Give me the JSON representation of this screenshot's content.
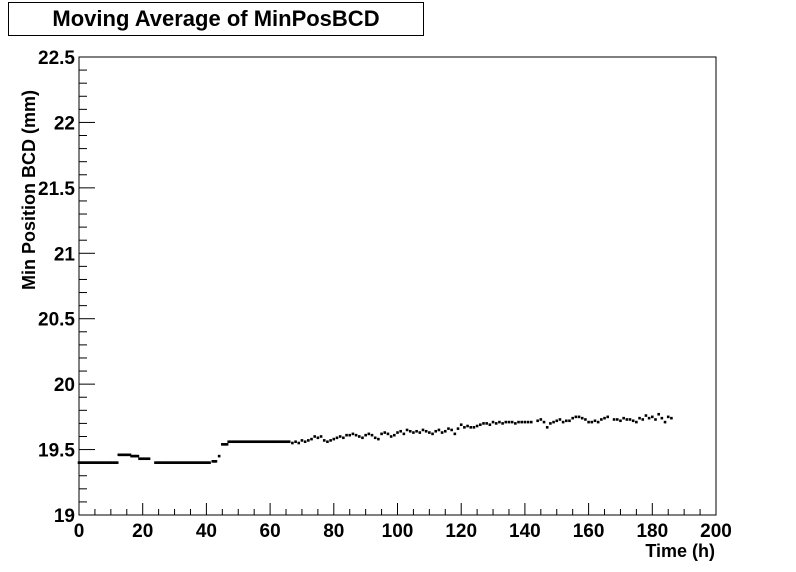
{
  "chart_data": {
    "type": "scatter",
    "title": "Moving Average of MinPosBCD",
    "xlabel": "Time (h)",
    "ylabel": "Min Position BCD (mm)",
    "xlim": [
      0,
      200
    ],
    "ylim": [
      19,
      22.5
    ],
    "x_ticks": [
      "0",
      "20",
      "40",
      "60",
      "80",
      "100",
      "120",
      "140",
      "160",
      "180",
      "200"
    ],
    "y_ticks": [
      "19",
      "19.5",
      "20",
      "20.5",
      "21",
      "21.5",
      "22",
      "22.5"
    ],
    "grid": false,
    "marker_color": "#000000",
    "segments": [
      {
        "x_start": 0,
        "x_end": 12,
        "y": 19.4
      },
      {
        "x_start": 12.5,
        "x_end": 16,
        "y": 19.46
      },
      {
        "x_start": 16.5,
        "x_end": 18.5,
        "y": 19.45
      },
      {
        "x_start": 19,
        "x_end": 22,
        "y": 19.43
      },
      {
        "x_start": 24,
        "x_end": 41,
        "y": 19.4
      },
      {
        "x_start": 42,
        "x_end": 43,
        "y": 19.41
      },
      {
        "x_start": 44,
        "x_end": 44,
        "y": 19.45
      },
      {
        "x_start": 45,
        "x_end": 46.5,
        "y": 19.54
      },
      {
        "x_start": 47,
        "x_end": 66,
        "y": 19.56
      }
    ],
    "points": [
      [
        67,
        19.55
      ],
      [
        68,
        19.56
      ],
      [
        69,
        19.55
      ],
      [
        70,
        19.57
      ],
      [
        71,
        19.56
      ],
      [
        72,
        19.57
      ],
      [
        73,
        19.58
      ],
      [
        74,
        19.6
      ],
      [
        75,
        19.59
      ],
      [
        76,
        19.6
      ],
      [
        77,
        19.57
      ],
      [
        78,
        19.56
      ],
      [
        79,
        19.57
      ],
      [
        80,
        19.58
      ],
      [
        81,
        19.59
      ],
      [
        82,
        19.6
      ],
      [
        83,
        19.59
      ],
      [
        84,
        19.61
      ],
      [
        85,
        19.61
      ],
      [
        86,
        19.62
      ],
      [
        87,
        19.61
      ],
      [
        88,
        19.6
      ],
      [
        89,
        19.59
      ],
      [
        90,
        19.61
      ],
      [
        91,
        19.62
      ],
      [
        92,
        19.61
      ],
      [
        93,
        19.59
      ],
      [
        94,
        19.58
      ],
      [
        95,
        19.62
      ],
      [
        96,
        19.63
      ],
      [
        97,
        19.62
      ],
      [
        98,
        19.6
      ],
      [
        99,
        19.61
      ],
      [
        100,
        19.63
      ],
      [
        101,
        19.64
      ],
      [
        102,
        19.62
      ],
      [
        103,
        19.65
      ],
      [
        104,
        19.64
      ],
      [
        105,
        19.63
      ],
      [
        106,
        19.64
      ],
      [
        107,
        19.63
      ],
      [
        108,
        19.65
      ],
      [
        109,
        19.64
      ],
      [
        110,
        19.63
      ],
      [
        111,
        19.62
      ],
      [
        112,
        19.64
      ],
      [
        113,
        19.65
      ],
      [
        114,
        19.63
      ],
      [
        115,
        19.64
      ],
      [
        116,
        19.66
      ],
      [
        117,
        19.65
      ],
      [
        118,
        19.62
      ],
      [
        119,
        19.66
      ],
      [
        120,
        19.69
      ],
      [
        121,
        19.67
      ],
      [
        122,
        19.68
      ],
      [
        123,
        19.67
      ],
      [
        124,
        19.67
      ],
      [
        125,
        19.68
      ],
      [
        126,
        19.69
      ],
      [
        127,
        19.7
      ],
      [
        128,
        19.7
      ],
      [
        129,
        19.69
      ],
      [
        130,
        19.71
      ],
      [
        131,
        19.7
      ],
      [
        132,
        19.71
      ],
      [
        133,
        19.7
      ],
      [
        134,
        19.71
      ],
      [
        135,
        19.71
      ],
      [
        136,
        19.71
      ],
      [
        137,
        19.7
      ],
      [
        138,
        19.71
      ],
      [
        139,
        19.71
      ],
      [
        140,
        19.71
      ],
      [
        141,
        19.71
      ],
      [
        142,
        19.71
      ],
      [
        144,
        19.72
      ],
      [
        145,
        19.73
      ],
      [
        146,
        19.71
      ],
      [
        147,
        19.67
      ],
      [
        148,
        19.7
      ],
      [
        149,
        19.71
      ],
      [
        150,
        19.72
      ],
      [
        151,
        19.73
      ],
      [
        152,
        19.71
      ],
      [
        153,
        19.72
      ],
      [
        154,
        19.72
      ],
      [
        155,
        19.74
      ],
      [
        156,
        19.75
      ],
      [
        157,
        19.75
      ],
      [
        158,
        19.74
      ],
      [
        159,
        19.73
      ],
      [
        160,
        19.71
      ],
      [
        161,
        19.71
      ],
      [
        162,
        19.72
      ],
      [
        163,
        19.71
      ],
      [
        164,
        19.73
      ],
      [
        165,
        19.74
      ],
      [
        166,
        19.75
      ],
      [
        168,
        19.73
      ],
      [
        169,
        19.73
      ],
      [
        170,
        19.72
      ],
      [
        171,
        19.74
      ],
      [
        172,
        19.73
      ],
      [
        173,
        19.73
      ],
      [
        174,
        19.72
      ],
      [
        175,
        19.71
      ],
      [
        176,
        19.74
      ],
      [
        177,
        19.73
      ],
      [
        178,
        19.76
      ],
      [
        179,
        19.74
      ],
      [
        180,
        19.75
      ],
      [
        181,
        19.73
      ],
      [
        182,
        19.77
      ],
      [
        183,
        19.74
      ],
      [
        184,
        19.71
      ],
      [
        185,
        19.75
      ],
      [
        186,
        19.74
      ]
    ]
  }
}
